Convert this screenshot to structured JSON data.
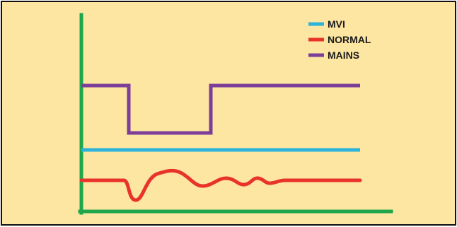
{
  "chart_data": {
    "type": "line",
    "title": "",
    "xlabel": "",
    "ylabel": "",
    "grid": false,
    "legend": "top-right",
    "axis_color": "#1fa64a",
    "background": "#fde5a2",
    "series": [
      {
        "name": "MVI",
        "color": "#2bb3d9",
        "kind": "flat",
        "level": 209
      },
      {
        "name": "NORMAL",
        "color": "#e8332a",
        "kind": "oscillation",
        "level": 252
      },
      {
        "name": "MAINS",
        "color": "#7c3e98",
        "kind": "step",
        "high_level": 118,
        "low_level": 185
      }
    ]
  }
}
